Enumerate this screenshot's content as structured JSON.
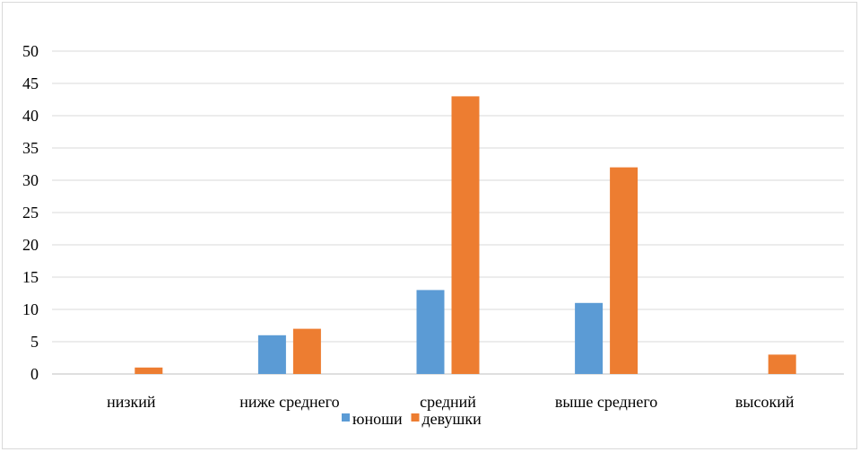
{
  "chart_data": {
    "type": "bar",
    "categories": [
      "низкий",
      "ниже среднего",
      "средний",
      "выше среднего",
      "высокий"
    ],
    "series": [
      {
        "name": "юноши",
        "values": [
          0,
          6,
          13,
          11,
          0
        ],
        "color": "#5b9bd5"
      },
      {
        "name": "девушки",
        "values": [
          1,
          7,
          43,
          32,
          3
        ],
        "color": "#ed7d31"
      }
    ],
    "ylim": [
      0,
      50
    ],
    "yticks": [
      0,
      5,
      10,
      15,
      20,
      25,
      30,
      35,
      40,
      45,
      50
    ],
    "grid": true,
    "legend": "bottom",
    "title": "",
    "xlabel": "",
    "ylabel": ""
  }
}
